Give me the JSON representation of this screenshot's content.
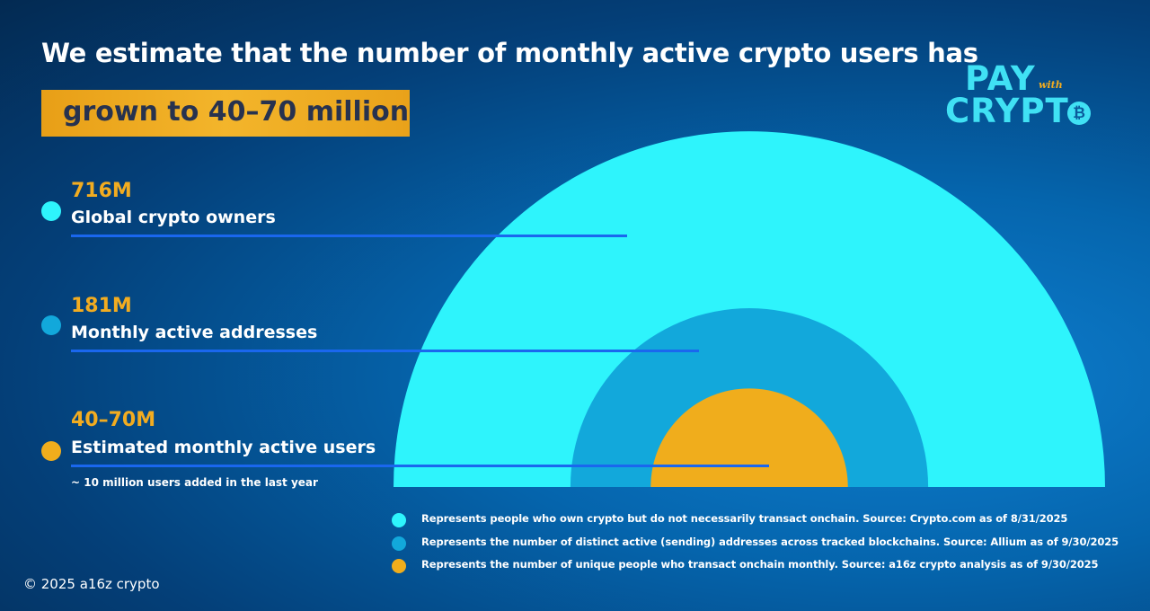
{
  "header": {
    "headline": "We estimate that the number of monthly active crypto users has",
    "highlight": "grown to 40–70 million"
  },
  "logo": {
    "line1": "PAY",
    "with": "with",
    "line2": "CRYPT",
    "coin_symbol": "₿"
  },
  "stats": [
    {
      "value": "716M",
      "label": "Global crypto owners",
      "color": "#2ef4fc"
    },
    {
      "value": "181M",
      "label": "Monthly active addresses",
      "color": "#12a8db"
    },
    {
      "value": "40–70M",
      "label": "Estimated monthly active users",
      "color": "#f0ad1c"
    }
  ],
  "note": "~ 10 million users added in the last year",
  "legend": [
    {
      "text": "Represents people who own crypto but do not necessarily transact onchain. Source: Crypto.com as of 8/31/2025",
      "color": "#2ef4fc"
    },
    {
      "text": "Represents the number of distinct active (sending) addresses across tracked blockchains. Source: Allium as of 9/30/2025",
      "color": "#12a8db"
    },
    {
      "text": "Represents the number of unique people who transact onchain monthly. Source: a16z crypto analysis as of 9/30/2025",
      "color": "#f0ad1c"
    }
  ],
  "copyright": "© 2025 a16z crypto",
  "chart_data": {
    "type": "nested-semicircle",
    "title": "We estimate that the number of monthly active crypto users has grown to 40–70 million",
    "categories": [
      "Global crypto owners",
      "Monthly active addresses",
      "Estimated monthly active users"
    ],
    "values": [
      716,
      181,
      55
    ],
    "value_labels": [
      "716M",
      "181M",
      "40–70M"
    ],
    "unit": "millions",
    "colors": [
      "#2ef4fc",
      "#12a8db",
      "#f0ad1c"
    ],
    "legend_position": "bottom"
  }
}
